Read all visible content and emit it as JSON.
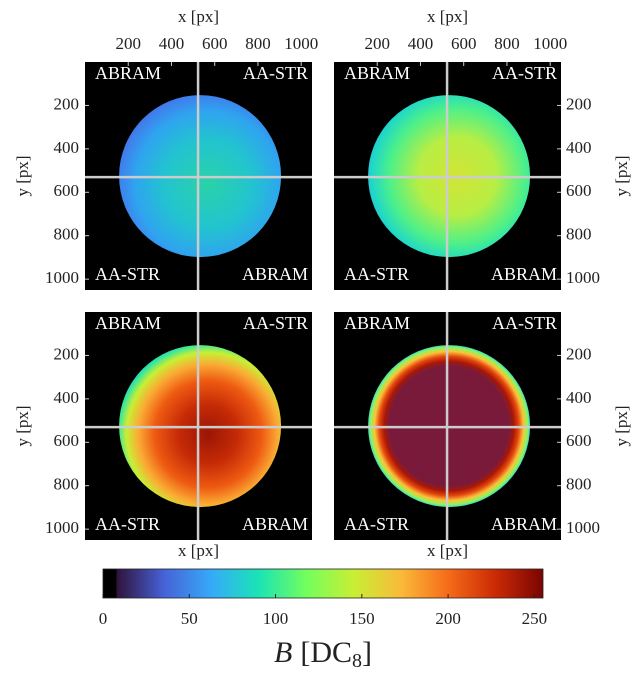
{
  "chart_data": {
    "type": "image_grid",
    "panels": [
      {
        "x_label": "x [px]",
        "y_label": "y [px]",
        "quadrant_labels": [
          "ABRAM",
          "AA-STR",
          "AA-STR",
          "ABRAM"
        ]
      },
      {
        "x_label": "x [px]",
        "y_label": "y [px]",
        "quadrant_labels": [
          "ABRAM",
          "AA-STR",
          "AA-STR",
          "ABRAM"
        ]
      },
      {
        "x_label": "x [px]",
        "y_label": "y [px]",
        "quadrant_labels": [
          "ABRAM",
          "AA-STR",
          "AA-STR",
          "ABRAM"
        ]
      },
      {
        "x_label": "x [px]",
        "y_label": "y [px]",
        "quadrant_labels": [
          "ABRAM",
          "AA-STR",
          "AA-STR",
          "ABRAM"
        ]
      }
    ],
    "xlim": [
      0,
      1050
    ],
    "ylim": [
      0,
      1050
    ],
    "xticks": [
      200,
      400,
      600,
      800,
      1000
    ],
    "yticks": [
      200,
      400,
      600,
      800,
      1000
    ],
    "crosshair": {
      "x": 523,
      "y": 530
    },
    "colorbar": {
      "clim": [
        0,
        255
      ],
      "ticks": [
        0,
        50,
        100,
        150,
        200,
        250
      ],
      "colormap": [
        "#000000",
        "#30123b",
        "#4662d7",
        "#36aaf9",
        "#1ae4b6",
        "#72fe5e",
        "#c8ef34",
        "#faba39",
        "#f66b19",
        "#ca2a04",
        "#7a0403"
      ],
      "label_symbol": "B",
      "label_unit": "[DC",
      "label_subscript": "8",
      "label_close": "]"
    }
  }
}
